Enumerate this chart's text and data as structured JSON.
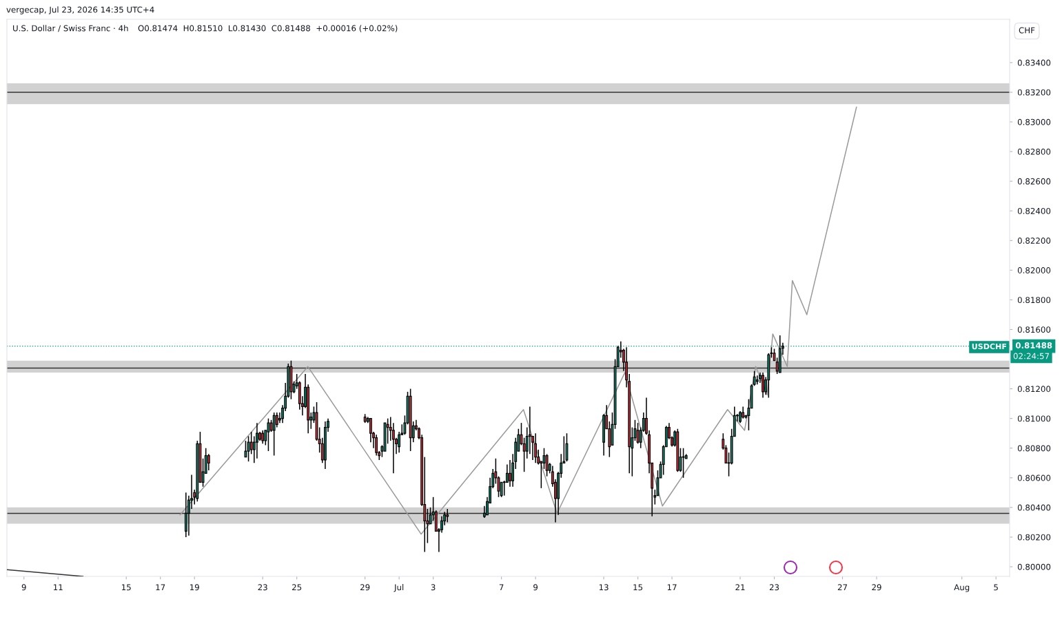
{
  "chart_data": {
    "type": "candlestick",
    "title": "U.S. Dollar / Swiss Franc · 4h",
    "annotations": [
      "vergecap, Jul 23, 2026 14:35 UTC+4",
      "O0.81474  H0.81510  L0.81430  C0.81488  +0.00016 (+0.02%)",
      "CHF",
      "USDCHF",
      "02:24:57"
    ],
    "x": [
      "2026-06-18T12:00",
      "2026-06-18T16:00",
      "2026-06-18T20:00",
      "2026-06-19T00:00",
      "2026-06-19T04:00",
      "2026-06-19T08:00",
      "2026-06-19T12:00",
      "2026-06-19T16:00",
      "2026-06-19T20:00",
      "2026-06-22T00:00",
      "2026-06-22T04:00",
      "2026-06-22T08:00",
      "2026-06-22T12:00",
      "2026-06-22T16:00",
      "2026-06-22T20:00",
      "2026-06-23T00:00",
      "2026-06-23T04:00",
      "2026-06-23T08:00",
      "2026-06-23T12:00",
      "2026-06-23T16:00",
      "2026-06-23T20:00",
      "2026-06-24T00:00",
      "2026-06-24T04:00",
      "2026-06-24T08:00",
      "2026-06-24T12:00",
      "2026-06-24T16:00",
      "2026-06-24T20:00",
      "2026-06-25T00:00",
      "2026-06-25T04:00",
      "2026-06-25T08:00",
      "2026-06-25T12:00",
      "2026-06-25T16:00",
      "2026-06-25T20:00",
      "2026-06-26T00:00",
      "2026-06-26T04:00",
      "2026-06-26T08:00",
      "2026-06-26T12:00",
      "2026-06-26T16:00",
      "2026-06-26T20:00",
      "2026-06-29T00:00",
      "2026-06-29T04:00",
      "2026-06-29T08:00",
      "2026-06-29T12:00",
      "2026-06-29T16:00",
      "2026-06-29T20:00",
      "2026-06-30T00:00",
      "2026-06-30T04:00",
      "2026-06-30T08:00",
      "2026-06-30T12:00",
      "2026-06-30T16:00",
      "2026-06-30T20:00",
      "2026-07-01T00:00",
      "2026-07-01T04:00",
      "2026-07-01T08:00",
      "2026-07-01T12:00",
      "2026-07-01T16:00",
      "2026-07-01T20:00",
      "2026-07-02T00:00",
      "2026-07-02T04:00",
      "2026-07-02T08:00",
      "2026-07-02T12:00",
      "2026-07-02T16:00",
      "2026-07-02T20:00",
      "2026-07-03T00:00",
      "2026-07-03T04:00",
      "2026-07-03T08:00",
      "2026-07-03T12:00",
      "2026-07-03T16:00",
      "2026-07-03T20:00",
      "2026-07-06T00:00",
      "2026-07-06T04:00",
      "2026-07-06T08:00",
      "2026-07-06T12:00",
      "2026-07-06T16:00",
      "2026-07-06T20:00",
      "2026-07-07T00:00",
      "2026-07-07T04:00",
      "2026-07-07T08:00",
      "2026-07-07T12:00",
      "2026-07-07T16:00",
      "2026-07-07T20:00",
      "2026-07-08T00:00",
      "2026-07-08T04:00",
      "2026-07-08T08:00",
      "2026-07-08T12:00",
      "2026-07-08T16:00",
      "2026-07-08T20:00",
      "2026-07-09T00:00",
      "2026-07-09T04:00",
      "2026-07-09T08:00",
      "2026-07-09T12:00",
      "2026-07-09T16:00",
      "2026-07-09T20:00",
      "2026-07-10T00:00",
      "2026-07-10T04:00",
      "2026-07-10T08:00",
      "2026-07-10T12:00",
      "2026-07-10T16:00",
      "2026-07-10T20:00",
      "2026-07-13T00:00",
      "2026-07-13T04:00",
      "2026-07-13T08:00",
      "2026-07-13T12:00",
      "2026-07-13T16:00",
      "2026-07-13T20:00",
      "2026-07-14T00:00",
      "2026-07-14T04:00",
      "2026-07-14T08:00",
      "2026-07-14T12:00",
      "2026-07-14T16:00",
      "2026-07-14T20:00",
      "2026-07-15T00:00",
      "2026-07-15T04:00",
      "2026-07-15T08:00",
      "2026-07-15T12:00",
      "2026-07-15T16:00",
      "2026-07-15T20:00",
      "2026-07-16T00:00",
      "2026-07-16T04:00",
      "2026-07-16T08:00",
      "2026-07-16T12:00",
      "2026-07-16T16:00",
      "2026-07-16T20:00",
      "2026-07-17T00:00",
      "2026-07-17T04:00",
      "2026-07-17T08:00",
      "2026-07-17T12:00",
      "2026-07-17T16:00",
      "2026-07-17T20:00",
      "2026-07-20T00:00",
      "2026-07-20T04:00",
      "2026-07-20T08:00",
      "2026-07-20T12:00",
      "2026-07-20T16:00",
      "2026-07-20T20:00",
      "2026-07-21T00:00",
      "2026-07-21T04:00",
      "2026-07-21T08:00",
      "2026-07-21T12:00",
      "2026-07-21T16:00",
      "2026-07-21T20:00",
      "2026-07-22T00:00",
      "2026-07-22T04:00",
      "2026-07-22T08:00",
      "2026-07-22T12:00",
      "2026-07-22T16:00",
      "2026-07-22T20:00",
      "2026-07-23T00:00",
      "2026-07-23T04:00",
      "2026-07-23T08:00",
      "2026-07-23T12:00"
    ],
    "ohlc": [
      [
        0.8024,
        0.805,
        0.802,
        0.8036
      ],
      [
        0.8036,
        0.8048,
        0.8021,
        0.8045
      ],
      [
        0.8045,
        0.8062,
        0.8039,
        0.8046
      ],
      [
        0.805,
        0.8052,
        0.8042,
        0.8047
      ],
      [
        0.8046,
        0.8085,
        0.8044,
        0.8083
      ],
      [
        0.8083,
        0.8091,
        0.8057,
        0.8057
      ],
      [
        0.8057,
        0.8073,
        0.8054,
        0.8064
      ],
      [
        0.8063,
        0.808,
        0.8063,
        0.8075
      ],
      [
        0.8075,
        0.8076,
        0.8065,
        0.807
      ],
      [
        0.8074,
        0.8085,
        0.8074,
        0.8078
      ],
      [
        0.8078,
        0.8088,
        0.8071,
        0.8084
      ],
      [
        0.8084,
        0.8091,
        0.8076,
        0.8079
      ],
      [
        0.8079,
        0.8088,
        0.807,
        0.8084
      ],
      [
        0.8084,
        0.8097,
        0.8073,
        0.809
      ],
      [
        0.809,
        0.8091,
        0.8085,
        0.8086
      ],
      [
        0.809,
        0.8092,
        0.8083,
        0.8085
      ],
      [
        0.8085,
        0.8092,
        0.8082,
        0.8092
      ],
      [
        0.8091,
        0.81,
        0.8078,
        0.8097
      ],
      [
        0.8097,
        0.8099,
        0.8091,
        0.8092
      ],
      [
        0.8092,
        0.8104,
        0.8075,
        0.8102
      ],
      [
        0.8102,
        0.8104,
        0.8094,
        0.8096
      ],
      [
        0.8099,
        0.8104,
        0.8097,
        0.81
      ],
      [
        0.81,
        0.8109,
        0.8097,
        0.8107
      ],
      [
        0.8107,
        0.8124,
        0.8105,
        0.8115
      ],
      [
        0.8115,
        0.8137,
        0.8114,
        0.8135
      ],
      [
        0.8135,
        0.8139,
        0.8113,
        0.8118
      ],
      [
        0.8118,
        0.8125,
        0.8117,
        0.8123
      ],
      [
        0.8122,
        0.813,
        0.812,
        0.8124
      ],
      [
        0.8124,
        0.8125,
        0.8106,
        0.811
      ],
      [
        0.811,
        0.8115,
        0.8102,
        0.8108
      ],
      [
        0.8108,
        0.813,
        0.8107,
        0.8121
      ],
      [
        0.8121,
        0.8123,
        0.809,
        0.8099
      ],
      [
        0.8099,
        0.8104,
        0.8093,
        0.8101
      ],
      [
        0.8099,
        0.8108,
        0.8097,
        0.8104
      ],
      [
        0.8104,
        0.8111,
        0.8085,
        0.8086
      ],
      [
        0.8086,
        0.8094,
        0.8077,
        0.8083
      ],
      [
        0.8083,
        0.8087,
        0.807,
        0.8072
      ],
      [
        0.8072,
        0.8098,
        0.8066,
        0.8094
      ],
      [
        0.8094,
        0.81,
        0.8091,
        0.8098
      ],
      [
        0.8101,
        0.8103,
        0.8097,
        0.8098
      ],
      [
        0.8098,
        0.8101,
        0.8097,
        0.81
      ],
      [
        0.81,
        0.81,
        0.8084,
        0.809
      ],
      [
        0.809,
        0.8091,
        0.808,
        0.8087
      ],
      [
        0.8087,
        0.8089,
        0.8075,
        0.8077
      ],
      [
        0.8077,
        0.8078,
        0.8072,
        0.8075
      ],
      [
        0.8078,
        0.8082,
        0.8074,
        0.8081
      ],
      [
        0.8078,
        0.8097,
        0.8078,
        0.8097
      ],
      [
        0.8096,
        0.81,
        0.8083,
        0.8094
      ],
      [
        0.8094,
        0.8101,
        0.8085,
        0.8092
      ],
      [
        0.8092,
        0.8097,
        0.8063,
        0.8086
      ],
      [
        0.8086,
        0.8087,
        0.8076,
        0.8083
      ],
      [
        0.8081,
        0.8091,
        0.8077,
        0.8089
      ],
      [
        0.8089,
        0.8096,
        0.8089,
        0.809
      ],
      [
        0.809,
        0.8102,
        0.8089,
        0.8097
      ],
      [
        0.8097,
        0.8118,
        0.8096,
        0.8115
      ],
      [
        0.8115,
        0.812,
        0.8078,
        0.8087
      ],
      [
        0.8087,
        0.8098,
        0.8084,
        0.8095
      ],
      [
        0.8095,
        0.8099,
        0.8092,
        0.8093
      ],
      [
        0.8093,
        0.8094,
        0.8086,
        0.8087
      ],
      [
        0.8087,
        0.8089,
        0.8041,
        0.8042
      ],
      [
        0.8042,
        0.8074,
        0.801,
        0.8031
      ],
      [
        0.8031,
        0.8039,
        0.8016,
        0.8029
      ],
      [
        0.8029,
        0.804,
        0.8029,
        0.8035
      ],
      [
        0.8035,
        0.8047,
        0.8031,
        0.8037
      ],
      [
        0.8037,
        0.8038,
        0.8024,
        0.8024
      ],
      [
        0.8024,
        0.8026,
        0.801,
        0.8025
      ],
      [
        0.8025,
        0.8034,
        0.8023,
        0.8031
      ],
      [
        0.8031,
        0.8037,
        0.8028,
        0.8035
      ],
      [
        0.8035,
        0.8039,
        0.803,
        0.8034
      ],
      [
        0.8034,
        0.8041,
        0.8033,
        0.8036
      ],
      [
        0.8035,
        0.8047,
        0.8035,
        0.8044
      ],
      [
        0.8043,
        0.806,
        0.8043,
        0.8054
      ],
      [
        0.8054,
        0.8066,
        0.8053,
        0.8063
      ],
      [
        0.8064,
        0.8073,
        0.8056,
        0.806
      ],
      [
        0.806,
        0.8061,
        0.8047,
        0.8051
      ],
      [
        0.8048,
        0.8057,
        0.8047,
        0.8057
      ],
      [
        0.8057,
        0.8058,
        0.8048,
        0.8057
      ],
      [
        0.8057,
        0.8069,
        0.8057,
        0.8063
      ],
      [
        0.8063,
        0.8072,
        0.8054,
        0.8058
      ],
      [
        0.8058,
        0.8076,
        0.8054,
        0.807
      ],
      [
        0.8071,
        0.8087,
        0.8066,
        0.8084
      ],
      [
        0.8078,
        0.8093,
        0.8078,
        0.8089
      ],
      [
        0.8089,
        0.8097,
        0.8082,
        0.8083
      ],
      [
        0.8083,
        0.8087,
        0.8064,
        0.8078
      ],
      [
        0.8078,
        0.8094,
        0.8073,
        0.8088
      ],
      [
        0.8089,
        0.8108,
        0.8076,
        0.8088
      ],
      [
        0.8088,
        0.8088,
        0.8072,
        0.8084
      ],
      [
        0.8083,
        0.809,
        0.807,
        0.8074
      ],
      [
        0.8074,
        0.8079,
        0.8069,
        0.807
      ],
      [
        0.8071,
        0.8071,
        0.8053,
        0.807
      ],
      [
        0.807,
        0.808,
        0.8066,
        0.8075
      ],
      [
        0.8075,
        0.8076,
        0.8061,
        0.8065
      ],
      [
        0.8065,
        0.807,
        0.8063,
        0.8069
      ],
      [
        0.8064,
        0.8068,
        0.8054,
        0.8056
      ],
      [
        0.8057,
        0.8059,
        0.803,
        0.8046
      ],
      [
        0.8046,
        0.8064,
        0.8035,
        0.8063
      ],
      [
        0.8063,
        0.8076,
        0.806,
        0.807
      ],
      [
        0.807,
        0.8088,
        0.807,
        0.8071
      ],
      [
        0.8072,
        0.809,
        0.8071,
        0.8083
      ],
      [
        0.8084,
        0.8103,
        0.8075,
        0.8102
      ],
      [
        0.8102,
        0.8109,
        0.8093,
        0.8093
      ],
      [
        0.8093,
        0.8098,
        0.8074,
        0.8081
      ],
      [
        0.8082,
        0.8104,
        0.8082,
        0.8096
      ],
      [
        0.8096,
        0.814,
        0.8093,
        0.8135
      ],
      [
        0.8135,
        0.8149,
        0.8135,
        0.8148
      ],
      [
        0.8146,
        0.8152,
        0.8141,
        0.8145
      ],
      [
        0.8146,
        0.8147,
        0.8132,
        0.8138
      ],
      [
        0.8138,
        0.8148,
        0.8121,
        0.8126
      ],
      [
        0.8125,
        0.813,
        0.8063,
        0.8081
      ],
      [
        0.808,
        0.8094,
        0.8061,
        0.8087
      ],
      [
        0.8087,
        0.8099,
        0.8085,
        0.8093
      ],
      [
        0.8092,
        0.8097,
        0.8083,
        0.8084
      ],
      [
        0.8084,
        0.8094,
        0.808,
        0.8092
      ],
      [
        0.8092,
        0.8104,
        0.8091,
        0.81
      ],
      [
        0.81,
        0.8114,
        0.8089,
        0.809
      ],
      [
        0.8089,
        0.8092,
        0.8063,
        0.807
      ],
      [
        0.807,
        0.807,
        0.8034,
        0.8053
      ],
      [
        0.8047,
        0.8052,
        0.8042,
        0.8048
      ],
      [
        0.8048,
        0.8065,
        0.8048,
        0.806
      ],
      [
        0.806,
        0.8071,
        0.806,
        0.8069
      ],
      [
        0.8069,
        0.8082,
        0.8062,
        0.8081
      ],
      [
        0.8081,
        0.8095,
        0.8081,
        0.8094
      ],
      [
        0.8094,
        0.8097,
        0.8086,
        0.8087
      ],
      [
        0.8087,
        0.8088,
        0.8081,
        0.8082
      ],
      [
        0.8082,
        0.8092,
        0.8081,
        0.8091
      ],
      [
        0.8091,
        0.8093,
        0.8064,
        0.8065
      ],
      [
        0.8065,
        0.808,
        0.8064,
        0.8074
      ],
      [
        0.8074,
        0.808,
        0.806,
        0.8074
      ],
      [
        0.8073,
        0.8076,
        0.8073,
        0.8075
      ],
      [
        0.8086,
        0.809,
        0.8079,
        0.808
      ],
      [
        0.808,
        0.8082,
        0.807,
        0.807
      ],
      [
        0.807,
        0.8077,
        0.8061,
        0.807
      ],
      [
        0.807,
        0.8093,
        0.8069,
        0.8088
      ],
      [
        0.8088,
        0.8108,
        0.8088,
        0.8102
      ],
      [
        0.8102,
        0.8103,
        0.8098,
        0.8102
      ],
      [
        0.8098,
        0.8105,
        0.8097,
        0.8104
      ],
      [
        0.8104,
        0.8108,
        0.81,
        0.8101
      ],
      [
        0.8101,
        0.8102,
        0.81,
        0.8102
      ],
      [
        0.8102,
        0.8113,
        0.8092,
        0.8107
      ],
      [
        0.8107,
        0.8123,
        0.8107,
        0.8122
      ],
      [
        0.8123,
        0.8132,
        0.8122,
        0.8128
      ],
      [
        0.8125,
        0.8129,
        0.8123,
        0.8126
      ],
      [
        0.8127,
        0.8131,
        0.8124,
        0.8129
      ],
      [
        0.8129,
        0.8131,
        0.8114,
        0.8118
      ],
      [
        0.8118,
        0.8128,
        0.8116,
        0.8126
      ],
      [
        0.8126,
        0.8144,
        0.8114,
        0.8143
      ],
      [
        0.8144,
        0.8148,
        0.8141,
        0.8144
      ],
      [
        0.8144,
        0.8147,
        0.8139,
        0.8139
      ],
      [
        0.8138,
        0.8141,
        0.813,
        0.8132
      ],
      [
        0.8131,
        0.8156,
        0.8131,
        0.8147
      ],
      [
        0.81474,
        0.8151,
        0.8143,
        0.81488
      ]
    ],
    "colors": [
      "#089981",
      "#089981",
      "#089981",
      "#f23645",
      "#089981",
      "#f23645",
      "#089981",
      "#089981",
      "#f23645",
      "#089981",
      "#089981",
      "#f23645",
      "#089981",
      "#089981",
      "#f23645",
      "#f23645",
      "#089981",
      "#089981",
      "#f23645",
      "#089981",
      "#f23645",
      "#089981",
      "#089981",
      "#089981",
      "#089981",
      "#f23645",
      "#089981",
      "#089981",
      "#f23645",
      "#f23645",
      "#089981",
      "#f23645",
      "#089981",
      "#089981",
      "#f23645",
      "#f23645",
      "#f23645",
      "#089981",
      "#089981",
      "#f23645",
      "#089981",
      "#f23645",
      "#f23645",
      "#f23645",
      "#f23645",
      "#089981",
      "#089981",
      "#f23645",
      "#f23645",
      "#f23645",
      "#f23645",
      "#089981",
      "#089981",
      "#089981",
      "#089981",
      "#f23645",
      "#089981",
      "#f23645",
      "#f23645",
      "#f23645",
      "#f23645",
      "#f23645",
      "#089981",
      "#089981",
      "#f23645",
      "#089981",
      "#089981",
      "#089981",
      "#f23645",
      "#089981",
      "#089981",
      "#089981",
      "#089981",
      "#f23645",
      "#f23645",
      "#089981",
      "#089981",
      "#089981",
      "#f23645",
      "#089981",
      "#089981",
      "#089981",
      "#f23645",
      "#f23645",
      "#089981",
      "#f23645",
      "#f23645",
      "#f23645",
      "#f23645",
      "#f23645",
      "#089981",
      "#f23645",
      "#089981",
      "#f23645",
      "#f23645",
      "#089981",
      "#089981",
      "#089981",
      "#089981",
      "#089981",
      "#f23645",
      "#f23645",
      "#089981",
      "#089981",
      "#089981",
      "#f23645",
      "#f23645",
      "#f23645",
      "#f23645",
      "#089981",
      "#089981",
      "#f23645",
      "#089981",
      "#089981",
      "#f23645",
      "#f23645",
      "#f23645",
      "#089981",
      "#089981",
      "#089981",
      "#089981",
      "#089981",
      "#f23645",
      "#f23645",
      "#089981",
      "#f23645",
      "#089981",
      "#089981",
      "#089981",
      "#f23645",
      "#f23645",
      "#089981",
      "#089981",
      "#089981",
      "#089981",
      "#089981",
      "#f23645",
      "#089981",
      "#089981",
      "#089981",
      "#089981",
      "#089981",
      "#089981",
      "#f23645",
      "#089981",
      "#089981",
      "#089981",
      "#f23645",
      "#f23645",
      "#089981",
      "#089981"
    ],
    "series": [
      {
        "type": "line",
        "color": "#9a9a9a",
        "x": [
          "2026-06-18T03:36",
          "2026-06-25T15:36",
          "2026-07-02T07:00",
          "2026-07-08T07:00",
          "2026-07-10T06:14",
          "2026-07-14T05:46",
          "2026-07-16T10:34",
          "2026-07-20T06:14",
          "2026-07-21T06:14",
          "2026-07-21T21:50",
          "2026-07-22T14:10",
          "2026-07-22T21:50",
          "2026-07-23T18:14",
          "2026-07-24T01:26",
          "2026-07-24T21:50",
          "2026-07-27T19:41"
        ],
        "values": [
          0.8035,
          0.8135,
          0.8022,
          0.8106,
          0.8036,
          0.8131,
          0.8041,
          0.8106,
          0.8092,
          0.8135,
          0.8116,
          0.8157,
          0.8135,
          0.8193,
          0.817,
          0.831
        ]
      },
      {
        "type": "line",
        "color": "#333333",
        "x": [
          "2026-06-08T00:00",
          "2026-06-12T11:17"
        ],
        "values": [
          0.7998,
          0.79935
        ]
      }
    ],
    "bands": [
      {
        "axis": "y",
        "from": 0.8312,
        "to": 0.8326,
        "color": "#d1d1d1"
      },
      {
        "axis": "y",
        "from": 0.8131,
        "to": 0.8139,
        "color": "#d1d1d1"
      },
      {
        "axis": "y",
        "from": 0.8029,
        "to": 0.804,
        "color": "#d1d1d1"
      }
    ],
    "ref_lines": [
      {
        "axis": "y",
        "value": 0.832,
        "color": "#333333",
        "line_style": "solid"
      },
      {
        "axis": "y",
        "value": 0.8134,
        "color": "#333333",
        "line_style": "solid"
      },
      {
        "axis": "y",
        "value": 0.8036,
        "color": "#333333",
        "line_style": "solid"
      },
      {
        "axis": "y",
        "value": 0.81488,
        "label": "0.81488",
        "color": "#089981",
        "line_style": "dotted"
      }
    ],
    "xlim": [
      "2026-06-08T00:00",
      "2026-08-05T19:12"
    ],
    "xticks": [
      {
        "value": "2026-06-09",
        "label": "9"
      },
      {
        "value": "2026-06-11",
        "label": "11"
      },
      {
        "value": "2026-06-15",
        "label": "15"
      },
      {
        "value": "2026-06-17",
        "label": "17"
      },
      {
        "value": "2026-06-19",
        "label": "19"
      },
      {
        "value": "2026-06-23",
        "label": "23"
      },
      {
        "value": "2026-06-25",
        "label": "25"
      },
      {
        "value": "2026-06-29",
        "label": "29"
      },
      {
        "value": "2026-07-01",
        "label": "Jul"
      },
      {
        "value": "2026-07-03",
        "label": "3"
      },
      {
        "value": "2026-07-07",
        "label": "7"
      },
      {
        "value": "2026-07-09",
        "label": "9"
      },
      {
        "value": "2026-07-13",
        "label": "13"
      },
      {
        "value": "2026-07-15",
        "label": "15"
      },
      {
        "value": "2026-07-17",
        "label": "17"
      },
      {
        "value": "2026-07-21",
        "label": "21"
      },
      {
        "value": "2026-07-23",
        "label": "23"
      },
      {
        "value": "2026-07-27",
        "label": "27"
      },
      {
        "value": "2026-07-29",
        "label": "29"
      },
      {
        "value": "2026-08-03",
        "label": "Aug"
      },
      {
        "value": "2026-08-05",
        "label": "5"
      }
    ],
    "ylim": [
      0.79935,
      0.83692
    ],
    "yticks": [
      {
        "value": 0.8,
        "label": "0.80000"
      },
      {
        "value": 0.802,
        "label": "0.80200"
      },
      {
        "value": 0.804,
        "label": "0.80400"
      },
      {
        "value": 0.806,
        "label": "0.80600"
      },
      {
        "value": 0.808,
        "label": "0.80800"
      },
      {
        "value": 0.81,
        "label": "0.81000"
      },
      {
        "value": 0.812,
        "label": "0.81200"
      },
      {
        "value": 0.816,
        "label": "0.81600"
      },
      {
        "value": 0.818,
        "label": "0.81800"
      },
      {
        "value": 0.82,
        "label": "0.82000"
      },
      {
        "value": 0.822,
        "label": "0.82200"
      },
      {
        "value": 0.824,
        "label": "0.82400"
      },
      {
        "value": 0.826,
        "label": "0.82600"
      },
      {
        "value": 0.828,
        "label": "0.82800"
      },
      {
        "value": 0.83,
        "label": "0.83000"
      },
      {
        "value": 0.832,
        "label": "0.83200"
      },
      {
        "value": 0.834,
        "label": "0.83400"
      }
    ],
    "grid": false
  }
}
